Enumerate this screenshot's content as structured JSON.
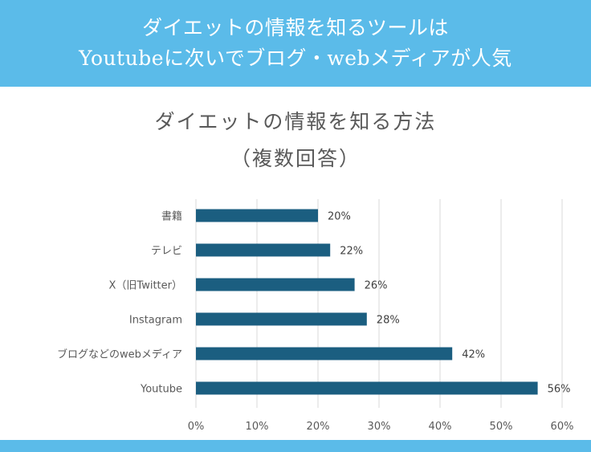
{
  "banner": {
    "line1": "ダイエットの情報を知るツールは",
    "line2": "Youtubeに次いでブログ・webメディアが人気"
  },
  "colors": {
    "banner": "#5bbbe9",
    "bar": "#1b5e80",
    "grid": "#d9d9d9",
    "text": "#595959"
  },
  "chart_data": {
    "type": "bar",
    "orientation": "horizontal",
    "title": "ダイエットの情報を知る方法",
    "subtitle": "（複数回答）",
    "categories": [
      "書籍",
      "テレビ",
      "X（旧Twitter）",
      "Instagram",
      "ブログなどのwebメディア",
      "Youtube"
    ],
    "values": [
      20,
      22,
      26,
      28,
      42,
      56
    ],
    "value_labels": [
      "20%",
      "22%",
      "26%",
      "28%",
      "42%",
      "56%"
    ],
    "xlim": [
      0,
      60
    ],
    "ticks": [
      0,
      10,
      20,
      30,
      40,
      50,
      60
    ],
    "tick_labels": [
      "0%",
      "10%",
      "20%",
      "30%",
      "40%",
      "50%",
      "60%"
    ],
    "grid": true,
    "legend": "none"
  }
}
